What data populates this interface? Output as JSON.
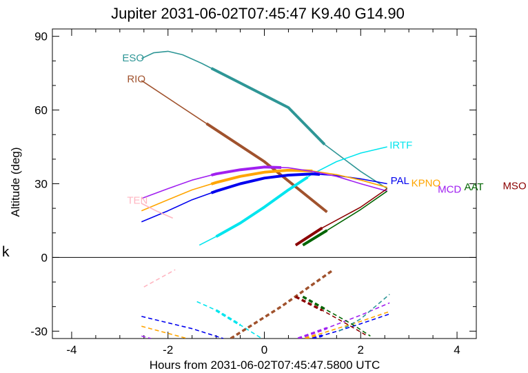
{
  "chart_data": {
    "type": "line",
    "title": "Jupiter 2031-06-02T07:45:47  K9.40  G14.90",
    "xlabel": "Hours from 2031-06-02T07:45:47.5800 UTC",
    "ylabel": "Altitude (deg)",
    "xlim": [
      -4.4,
      4.4
    ],
    "ylim": [
      -33,
      93
    ],
    "xticks": [
      -4,
      -2,
      0,
      2,
      4
    ],
    "xtick_labels": [
      "-4",
      "-2",
      "0",
      "2",
      "4"
    ],
    "yticks": [
      -30,
      0,
      30,
      60,
      90
    ],
    "ytick_labels": [
      "-30",
      "0",
      "30",
      "60",
      "90"
    ],
    "grid": false,
    "zero_line": true,
    "stray_label": "k",
    "series": [
      {
        "name": "ESO",
        "color": "#2e9696",
        "points": [
          [
            -2.55,
            81
          ],
          [
            -2.3,
            83.3
          ],
          [
            -2.0,
            83.9
          ],
          [
            -1.7,
            82.5
          ],
          [
            -1.3,
            79
          ],
          [
            -1.1,
            77
          ],
          [
            -0.5,
            71
          ],
          [
            0,
            66
          ],
          [
            0.5,
            61
          ],
          [
            1.25,
            46
          ],
          [
            2.0,
            35
          ],
          [
            2.55,
            28
          ]
        ],
        "thick_range": [
          -1.1,
          1.25
        ],
        "label_pos": [
          -2.95,
          81.5
        ]
      },
      {
        "name": "RIO",
        "color": "#a0522d",
        "points": [
          [
            -2.55,
            72
          ],
          [
            -1.2,
            54.5
          ],
          [
            0,
            39
          ],
          [
            1.3,
            18.5
          ]
        ],
        "thick_range": [
          -1.2,
          1.3
        ],
        "label_pos": [
          -2.85,
          73
        ]
      },
      {
        "name": "IRTF",
        "color": "#00e5ee",
        "points": [
          [
            -1.35,
            5
          ],
          [
            -1.0,
            8.5
          ],
          [
            -0.5,
            14
          ],
          [
            0,
            20.5
          ],
          [
            0.5,
            27.5
          ],
          [
            1.0,
            34
          ],
          [
            1.5,
            39
          ],
          [
            2.0,
            42.5
          ],
          [
            2.55,
            45
          ]
        ],
        "thick_range": [
          -1.0,
          0.9
        ],
        "label_pos": [
          2.6,
          46
        ]
      },
      {
        "name": "PAL",
        "color": "#0000ee",
        "points": [
          [
            -2.55,
            14.5
          ],
          [
            -2.0,
            19
          ],
          [
            -1.5,
            23.5
          ],
          [
            -1.0,
            27
          ],
          [
            -0.5,
            30
          ],
          [
            0,
            32.3
          ],
          [
            0.5,
            33.5
          ],
          [
            1.0,
            34
          ],
          [
            1.5,
            33.3
          ],
          [
            2.0,
            32
          ],
          [
            2.55,
            30
          ]
        ],
        "thick_range": [
          -1.1,
          1.15
        ],
        "label_pos": [
          2.62,
          31.5
        ]
      },
      {
        "name": "KPNO",
        "color": "#ffa500",
        "points": [
          [
            -2.55,
            19
          ],
          [
            -2.0,
            23.5
          ],
          [
            -1.5,
            27.5
          ],
          [
            -1.0,
            30.5
          ],
          [
            -0.5,
            33
          ],
          [
            0,
            34.7
          ],
          [
            0.5,
            35.5
          ],
          [
            1.0,
            35.2
          ],
          [
            1.5,
            33.7
          ],
          [
            2.0,
            31.5
          ],
          [
            2.55,
            28.5
          ]
        ],
        "thick_range": [
          -1.1,
          1.0
        ],
        "label_pos": [
          3.05,
          30.5
        ]
      },
      {
        "name": "MCD",
        "color": "#a020f0",
        "points": [
          [
            -2.55,
            24
          ],
          [
            -2.0,
            28
          ],
          [
            -1.5,
            31.5
          ],
          [
            -1.0,
            34
          ],
          [
            -0.5,
            35.7
          ],
          [
            0,
            36.8
          ],
          [
            0.5,
            36.5
          ],
          [
            1.0,
            35
          ],
          [
            1.5,
            33
          ],
          [
            2.0,
            30
          ],
          [
            2.55,
            27
          ]
        ],
        "thick_range": [
          -1.1,
          0.35
        ],
        "label_pos": [
          3.6,
          28
        ]
      },
      {
        "name": "AAT",
        "color": "#006400",
        "points": [
          [
            0.8,
            5
          ],
          [
            1.3,
            11
          ],
          [
            2.0,
            19.5
          ],
          [
            2.55,
            27
          ]
        ],
        "thick_range": [
          0.8,
          1.3
        ],
        "label_pos": [
          4.15,
          29
        ]
      },
      {
        "name": "MSO",
        "color": "#8b0000",
        "points": [
          [
            0.65,
            5
          ],
          [
            1.2,
            12
          ],
          [
            2.0,
            20.5
          ],
          [
            2.55,
            28
          ]
        ],
        "thick_range": [
          0.65,
          1.2
        ],
        "label_pos": [
          4.95,
          29.5
        ]
      },
      {
        "name": "TEN",
        "color": "#ffb6c1",
        "points": [
          [
            -2.55,
            22
          ],
          [
            -2.25,
            19
          ],
          [
            -1.9,
            16
          ]
        ],
        "thick_range": null,
        "label_pos": [
          -2.85,
          23.5
        ]
      }
    ],
    "below_horizon": [
      {
        "color": "#ffb6c1",
        "points": [
          [
            -2.5,
            -12
          ],
          [
            -1.85,
            -5
          ]
        ]
      },
      {
        "color": "#00e5ee",
        "points": [
          [
            -1.4,
            -18
          ],
          [
            -1.0,
            -21.5
          ],
          [
            -0.5,
            -27.5
          ],
          [
            -0.05,
            -33
          ]
        ],
        "thick_range": [
          -1.0,
          -0.5
        ]
      },
      {
        "color": "#a0522d",
        "points": [
          [
            -0.7,
            -33
          ],
          [
            0.35,
            -20
          ],
          [
            1.4,
            -5.5
          ]
        ],
        "thick_range": [
          -0.7,
          1.4
        ]
      },
      {
        "color": "#0000ee",
        "points": [
          [
            -2.55,
            -24
          ],
          [
            -1.5,
            -29
          ],
          [
            -0.85,
            -33
          ]
        ]
      },
      {
        "color": "#ffa500",
        "points": [
          [
            -2.55,
            -28
          ],
          [
            -1.6,
            -33
          ]
        ]
      },
      {
        "color": "#a020f0",
        "points": [
          [
            -2.55,
            -32
          ],
          [
            -2.35,
            -33
          ]
        ]
      },
      {
        "color": "#a020f0",
        "points": [
          [
            0.7,
            -33
          ],
          [
            1.2,
            -29.5
          ],
          [
            2.0,
            -23.5
          ],
          [
            2.6,
            -18.5
          ]
        ],
        "thick_range": [
          0.7,
          1.3
        ]
      },
      {
        "color": "#0000ee",
        "points": [
          [
            1.0,
            -33
          ],
          [
            1.6,
            -29.5
          ],
          [
            2.0,
            -27
          ],
          [
            2.6,
            -23
          ]
        ],
        "thick_range": [
          1.0,
          1.2
        ]
      },
      {
        "color": "#ffa500",
        "points": [
          [
            0.85,
            -33
          ],
          [
            1.5,
            -29
          ],
          [
            2.0,
            -26
          ],
          [
            2.6,
            -22
          ]
        ],
        "thick_range": [
          0.85,
          1.1
        ]
      },
      {
        "color": "#2e9696",
        "points": [
          [
            1.55,
            -30
          ],
          [
            2.0,
            -25
          ],
          [
            2.6,
            -15
          ]
        ]
      },
      {
        "color": "#8b0000",
        "points": [
          [
            0.65,
            -16
          ],
          [
            1.2,
            -21.5
          ],
          [
            1.75,
            -27.5
          ],
          [
            2.1,
            -31.5
          ]
        ],
        "thick_range": [
          0.65,
          1.2
        ]
      },
      {
        "color": "#006400",
        "points": [
          [
            0.8,
            -16
          ],
          [
            1.3,
            -21.5
          ],
          [
            1.85,
            -27.5
          ],
          [
            2.2,
            -32
          ]
        ],
        "thick_range": [
          0.8,
          1.3
        ]
      }
    ]
  }
}
